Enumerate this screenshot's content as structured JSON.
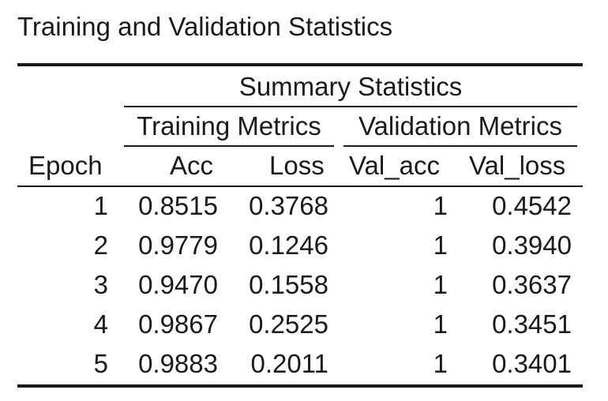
{
  "title": "Training and Validation Statistics",
  "header": {
    "spanner": "Summary Statistics",
    "groups": [
      "Training Metrics",
      "Validation Metrics"
    ],
    "columns": [
      "Epoch",
      "Acc",
      "Loss",
      "Val_acc",
      "Val_loss"
    ]
  },
  "rows": [
    [
      "1",
      "0.8515",
      "0.3768",
      "1",
      "0.4542"
    ],
    [
      "2",
      "0.9779",
      "0.1246",
      "1",
      "0.3940"
    ],
    [
      "3",
      "0.9470",
      "0.1558",
      "1",
      "0.3637"
    ],
    [
      "4",
      "0.9867",
      "0.2525",
      "1",
      "0.3451"
    ],
    [
      "5",
      "0.9883",
      "0.2011",
      "1",
      "0.3401"
    ]
  ]
}
